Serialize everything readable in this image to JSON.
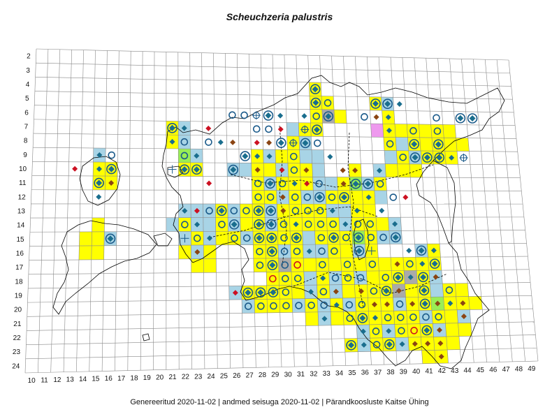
{
  "map": {
    "title": "Scheuchzeria palustris",
    "footer": "Genereeritud 2020-11-02  |  andmed seisuga 2020-11-02  |  Pärandkoosluste Kaitse Ühing",
    "row_labels": [
      "2",
      "3",
      "4",
      "5",
      "6",
      "7",
      "8",
      "9",
      "10",
      "11",
      "12",
      "13",
      "14",
      "15",
      "16",
      "17",
      "18",
      "19",
      "20",
      "21",
      "22",
      "23",
      "24"
    ],
    "col_labels": [
      "10",
      "11",
      "12",
      "13",
      "14",
      "15",
      "16",
      "17",
      "18",
      "19",
      "20",
      "21",
      "22",
      "23",
      "24",
      "25",
      "26",
      "27",
      "28",
      "29",
      "30",
      "31",
      "32",
      "33",
      "34",
      "35",
      "36",
      "37",
      "38",
      "39",
      "40",
      "41",
      "42",
      "43",
      "44",
      "45",
      "46",
      "47",
      "48",
      "49"
    ],
    "colors": {
      "grid_line": "#888888",
      "coast_line": "#000000",
      "yellow_cell": "#ffff00",
      "blue_cell": "#a8d4e6",
      "green_cell": "#99ee55",
      "gray_cell": "#aaaaaa",
      "pink_cell": "#ee99ee",
      "diamond_teal": "#1a6e8e",
      "diamond_brown": "#8b4513",
      "diamond_red": "#cc1122",
      "circle_blue": "#1a5a8a",
      "circle_red": "#cc1122"
    },
    "legend_symbols": [
      "filled-diamond-icon",
      "open-circle-icon",
      "circle-diamond-icon",
      "crosshair-icon",
      "cross-icon"
    ]
  }
}
